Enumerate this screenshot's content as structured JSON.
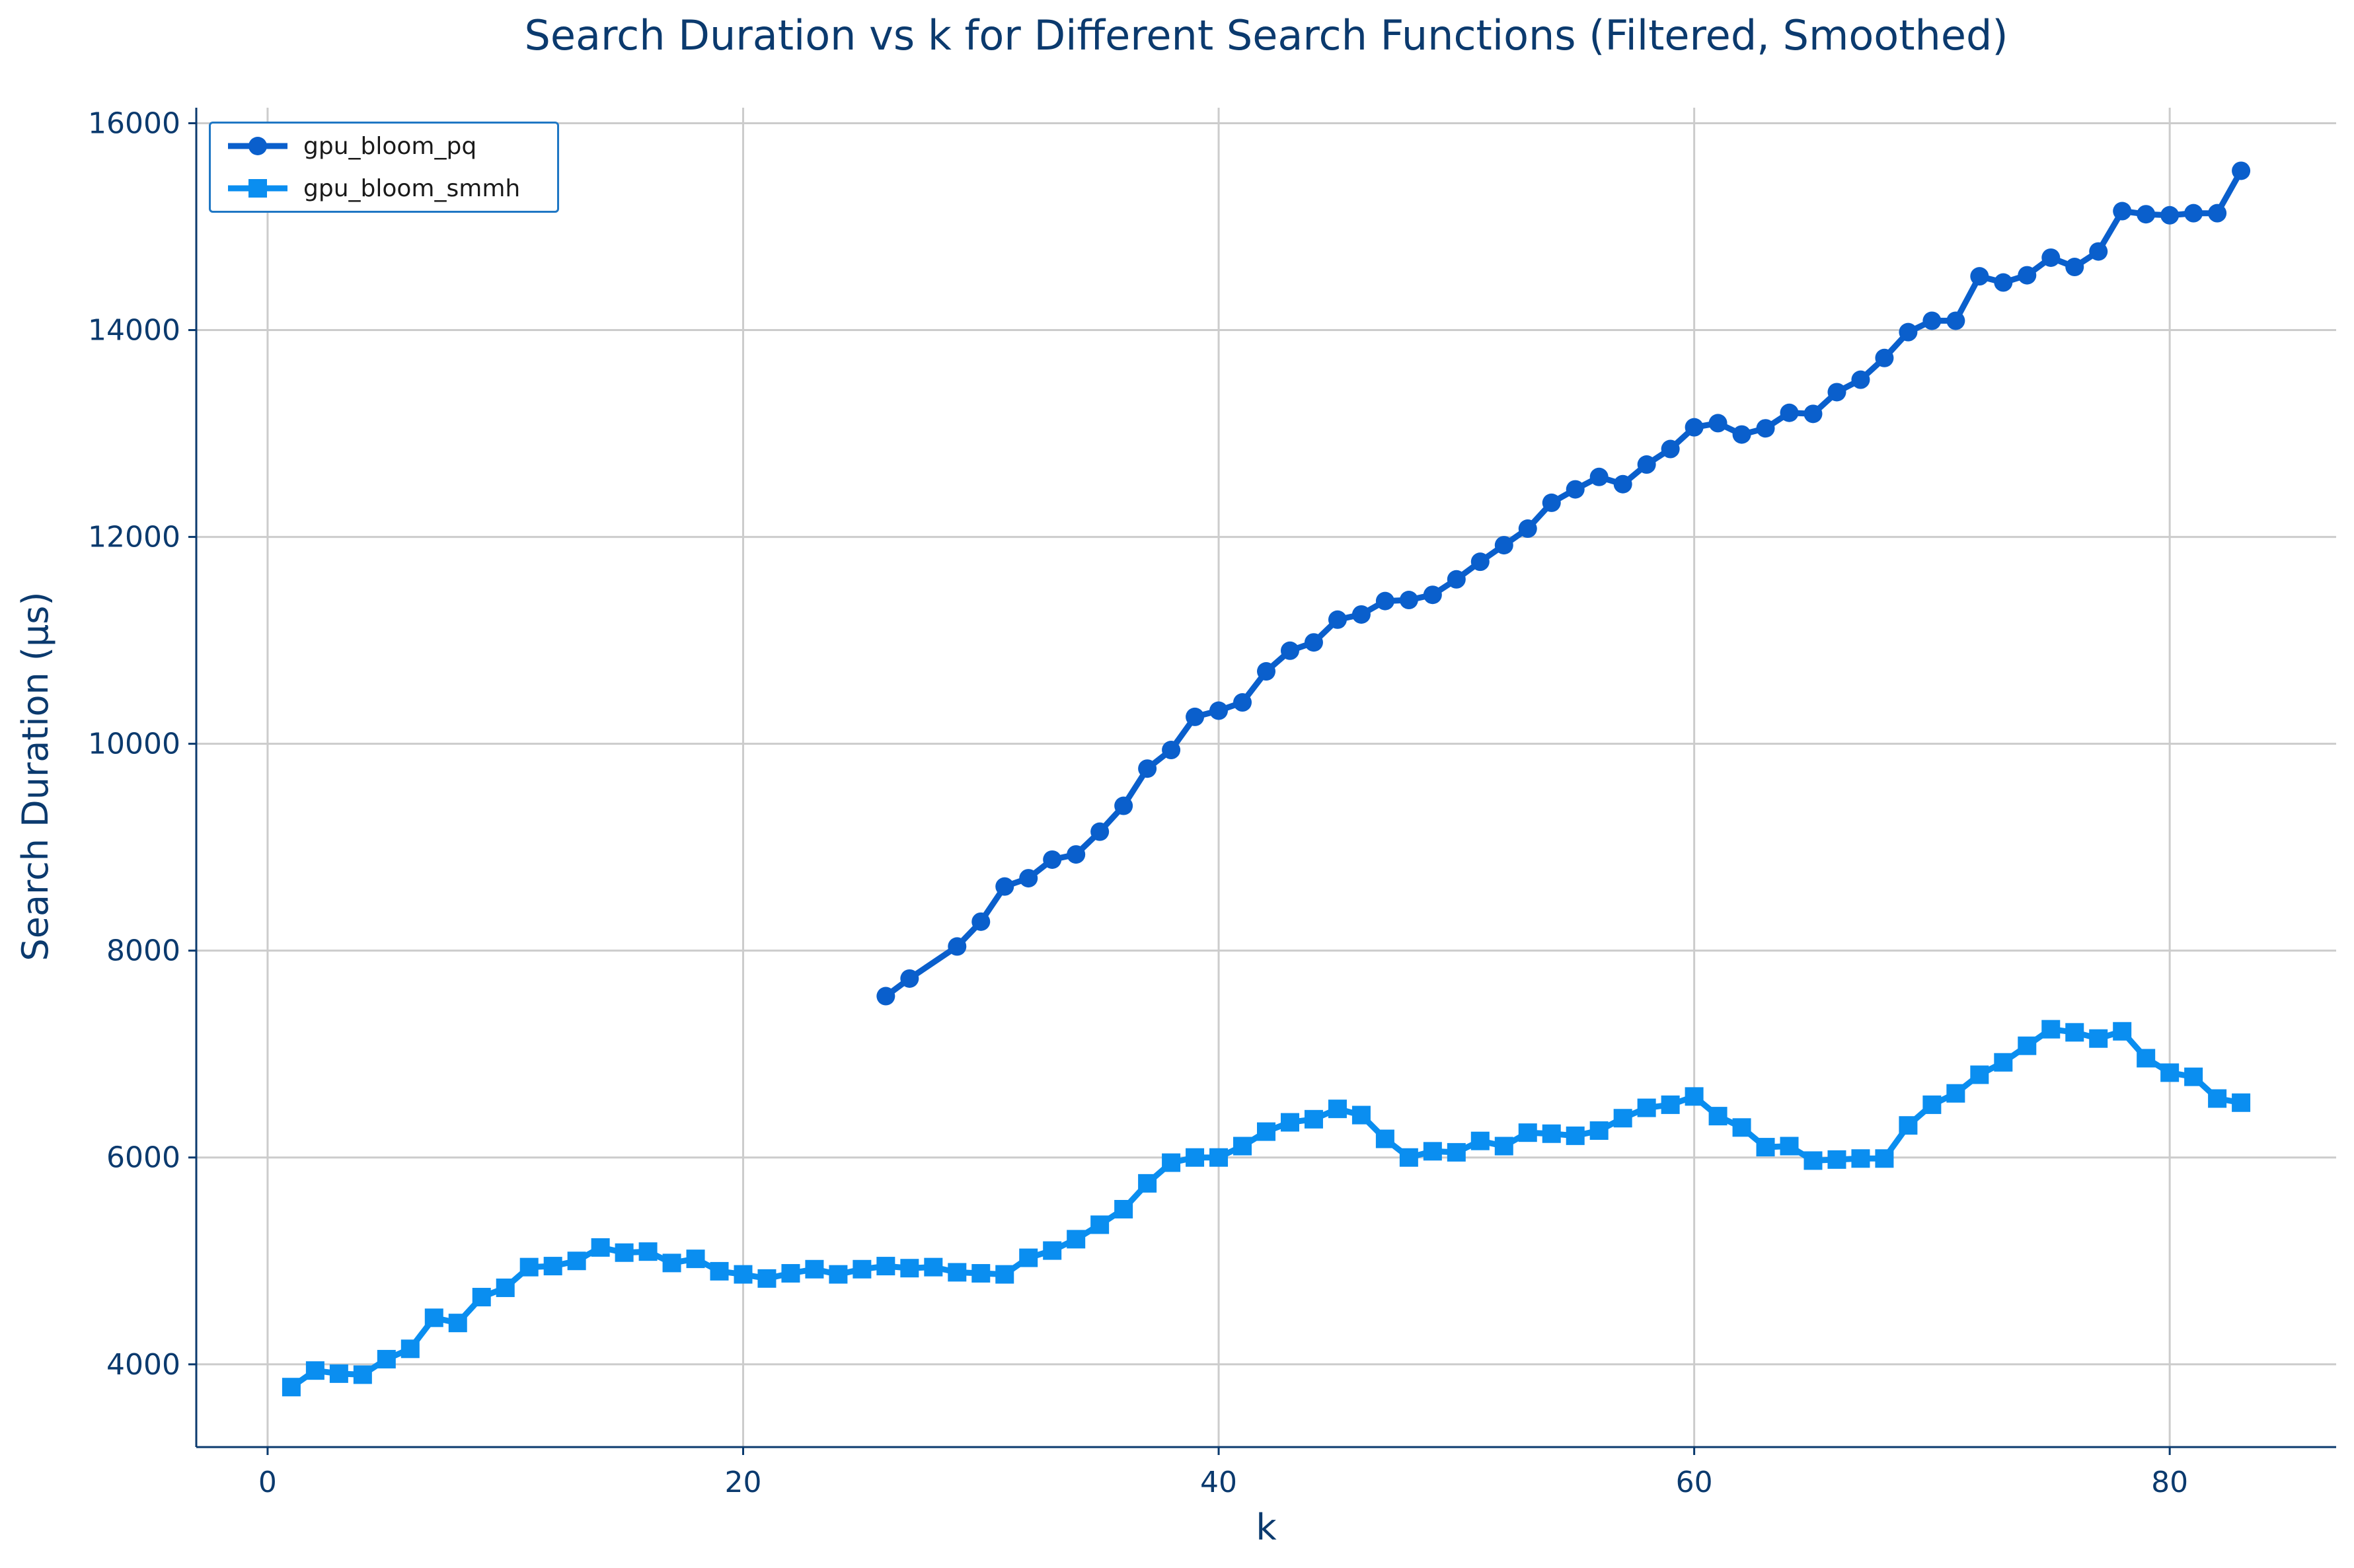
{
  "chart_data": {
    "type": "line",
    "title": "Search Duration vs k for Different Search Functions (Filtered, Smoothed)",
    "xlabel": "k",
    "ylabel": "Search Duration (μs)",
    "xlim": [
      -3,
      87
    ],
    "ylim": [
      3200,
      16150
    ],
    "xticks": [
      0,
      20,
      40,
      60,
      80
    ],
    "yticks": [
      4000,
      6000,
      8000,
      10000,
      12000,
      14000,
      16000
    ],
    "grid": true,
    "legend_position": "top-left",
    "series": [
      {
        "name": "gpu_bloom_pq",
        "color": "#0a5fcc",
        "marker": "circle",
        "x": [
          26,
          27,
          29,
          30,
          31,
          32,
          33,
          34,
          35,
          36,
          37,
          38,
          39,
          40,
          41,
          42,
          43,
          44,
          45,
          46,
          47,
          48,
          49,
          50,
          51,
          52,
          53,
          54,
          55,
          56,
          57,
          58,
          59,
          60,
          61,
          62,
          63,
          64,
          65,
          66,
          67,
          68,
          69,
          70,
          71,
          72,
          73,
          74,
          75,
          76,
          77,
          78,
          79,
          80,
          81,
          82,
          83
        ],
        "y": [
          7560,
          7730,
          8040,
          8280,
          8620,
          8700,
          8880,
          8930,
          9150,
          9400,
          9760,
          9940,
          10260,
          10320,
          10400,
          10700,
          10900,
          10980,
          11200,
          11250,
          11380,
          11390,
          11440,
          11590,
          11760,
          11920,
          12080,
          12330,
          12460,
          12580,
          12510,
          12700,
          12850,
          13060,
          13100,
          12990,
          13050,
          13200,
          13190,
          13400,
          13520,
          13730,
          13980,
          14090,
          14090,
          14520,
          14460,
          14530,
          14700,
          14610,
          14760,
          15150,
          15120,
          15110,
          15130,
          15130,
          15540
        ]
      },
      {
        "name": "gpu_bloom_smmh",
        "color": "#0a8ef0",
        "marker": "square",
        "x": [
          1,
          2,
          3,
          4,
          5,
          6,
          7,
          8,
          9,
          10,
          11,
          12,
          13,
          14,
          15,
          16,
          17,
          18,
          19,
          20,
          21,
          22,
          23,
          24,
          25,
          26,
          27,
          28,
          29,
          30,
          31,
          32,
          33,
          34,
          35,
          36,
          37,
          38,
          39,
          40,
          41,
          42,
          43,
          44,
          45,
          46,
          47,
          48,
          49,
          50,
          51,
          52,
          53,
          54,
          55,
          56,
          57,
          58,
          59,
          60,
          61,
          62,
          63,
          64,
          65,
          66,
          67,
          68,
          69,
          70,
          71,
          72,
          73,
          74,
          75,
          76,
          77,
          78,
          79,
          80,
          81,
          82,
          83
        ],
        "y": [
          3780,
          3940,
          3910,
          3900,
          4050,
          4150,
          4450,
          4400,
          4650,
          4740,
          4940,
          4950,
          5000,
          5130,
          5080,
          5090,
          4980,
          5020,
          4900,
          4870,
          4830,
          4880,
          4920,
          4870,
          4920,
          4950,
          4930,
          4940,
          4890,
          4880,
          4870,
          5030,
          5100,
          5210,
          5350,
          5500,
          5750,
          5950,
          6000,
          6000,
          6110,
          6250,
          6340,
          6370,
          6470,
          6410,
          6180,
          6000,
          6060,
          6050,
          6160,
          6110,
          6240,
          6230,
          6210,
          6260,
          6380,
          6480,
          6510,
          6590,
          6400,
          6290,
          6100,
          6110,
          5970,
          5980,
          5990,
          5990,
          6310,
          6510,
          6620,
          6800,
          6920,
          7080,
          7240,
          7210,
          7150,
          7220,
          6960,
          6820,
          6780,
          6570,
          6530
        ]
      }
    ]
  }
}
